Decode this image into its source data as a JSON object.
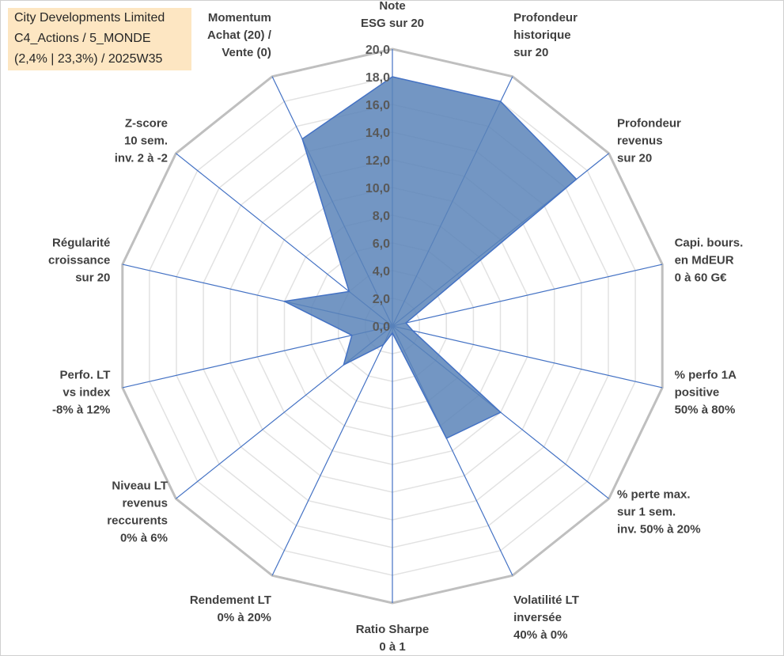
{
  "header": {
    "lines": [
      "City Developments Limited",
      "C4_Actions / 5_MONDE",
      "(2,4% | 23,3%) / 2025W35"
    ]
  },
  "colors": {
    "fill": "#5b84b8",
    "spoke": "#4472c4",
    "outer_ring": "#bfbfbf",
    "inner_ring": "#e2e2e2",
    "text": "#404040",
    "title_box": "#fde6c2"
  },
  "chart_data": {
    "type": "radar",
    "title": "",
    "rmin": 0,
    "rmax": 20,
    "tick_step": 2,
    "tick_labels": [
      "0,0",
      "2,0",
      "4,0",
      "6,0",
      "8,0",
      "10,0",
      "12,0",
      "14,0",
      "16,0",
      "18,0",
      "20,0"
    ],
    "grid": true,
    "axes": [
      {
        "label": [
          "Note",
          "ESG sur 20"
        ],
        "value": 18.0
      },
      {
        "label": [
          "Profondeur",
          "historique",
          "sur 20"
        ],
        "value": 18.0
      },
      {
        "label": [
          "Profondeur",
          "revenus",
          "sur 20"
        ],
        "value": 17.0
      },
      {
        "label": [
          "Capi. bours.",
          "en MdEUR",
          "0 à 60 G€"
        ],
        "value": 1.0
      },
      {
        "label": [
          "% perfo 1A",
          "positive",
          "50% à 80%"
        ],
        "value": 1.5
      },
      {
        "label": [
          "% perte max.",
          "sur 1 sem.",
          "inv. 50% à 20%"
        ],
        "value": 10.0
      },
      {
        "label": [
          "Volatilité LT",
          "inversée",
          "40% à 0%"
        ],
        "value": 9.0
      },
      {
        "label": [
          "Ratio Sharpe",
          "0 à 1"
        ],
        "value": 0.5
      },
      {
        "label": [
          "Rendement LT",
          "0% à 20%"
        ],
        "value": 1.5
      },
      {
        "label": [
          "Niveau LT",
          "revenus",
          "reccurents",
          "0% à 6%"
        ],
        "value": 4.5
      },
      {
        "label": [
          "Perfo. LT",
          "vs index",
          "-8% à 12%"
        ],
        "value": 3.0
      },
      {
        "label": [
          "Régularité",
          "croissance",
          "sur 20"
        ],
        "value": 8.0
      },
      {
        "label": [
          "Z-score",
          "10 sem.",
          "inv. 2 à -2"
        ],
        "value": 4.0
      },
      {
        "label": [
          "Momentum",
          "Achat (20) /",
          "Vente (0)"
        ],
        "value": 15.0
      }
    ]
  }
}
